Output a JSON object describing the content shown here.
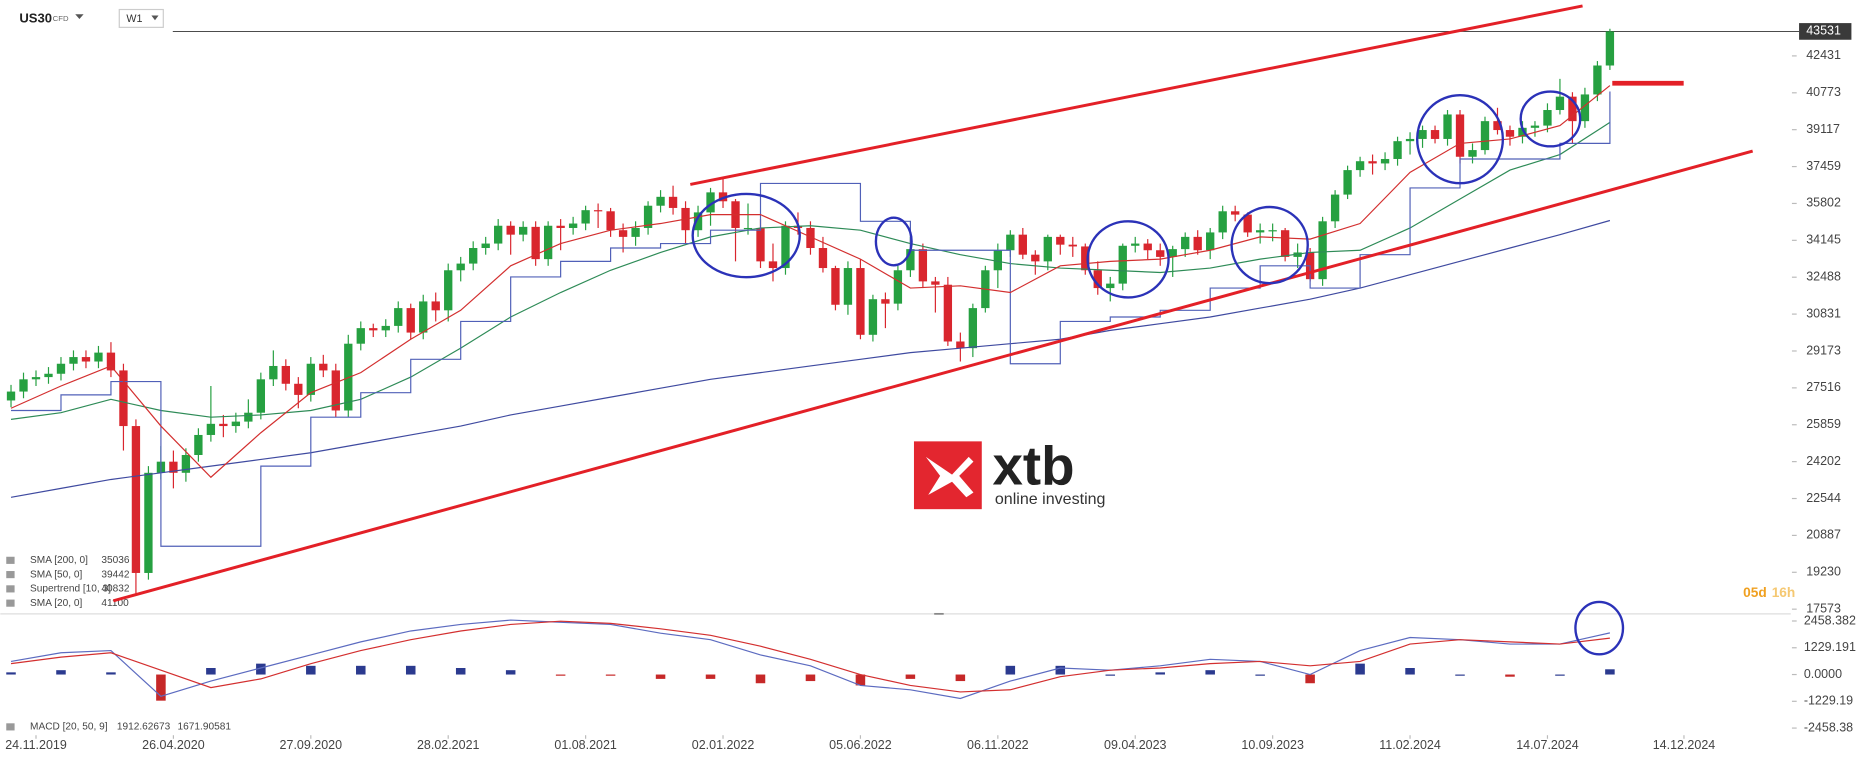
{
  "chart_data": {
    "type": "candlestick",
    "symbol": "US30",
    "instrument_class": "CFD",
    "timeframe": "W1",
    "up_color": "#26a041",
    "down_color": "#d9262e",
    "xlim": [
      "15.10.2019",
      "06.04.2025"
    ],
    "xticks": [
      "24.11.2019",
      "26.04.2020",
      "27.09.2020",
      "28.02.2021",
      "01.08.2021",
      "02.01.2022",
      "05.06.2022",
      "06.11.2022",
      "09.04.2023",
      "10.09.2023",
      "11.02.2024",
      "14.07.2024",
      "14.12.2024"
    ],
    "ylim": [
      17362,
      44943
    ],
    "yticks": [
      42431,
      40773,
      39117,
      37459,
      35802,
      34145,
      32488,
      30831,
      29173,
      27516,
      25859,
      24202,
      22544,
      20887,
      19230,
      17573
    ],
    "last_price": 43531,
    "countdown": {
      "days": "05d",
      "hours": "16h"
    },
    "x": [
      "27.10.2019",
      "10.11.2019",
      "24.11.2019",
      "08.12.2019",
      "22.12.2019",
      "05.01.2020",
      "19.01.2020",
      "02.02.2020",
      "16.02.2020",
      "01.03.2020",
      "15.03.2020",
      "29.03.2020",
      "12.04.2020",
      "26.04.2020",
      "10.05.2020",
      "24.05.2020",
      "07.06.2020",
      "21.06.2020",
      "05.07.2020",
      "19.07.2020",
      "02.08.2020",
      "16.08.2020",
      "30.08.2020",
      "13.09.2020",
      "27.09.2020",
      "11.10.2020",
      "25.10.2020",
      "08.11.2020",
      "22.11.2020",
      "06.12.2020",
      "20.12.2020",
      "03.01.2021",
      "17.01.2021",
      "31.01.2021",
      "14.02.2021",
      "28.02.2021",
      "14.03.2021",
      "28.03.2021",
      "11.04.2021",
      "25.04.2021",
      "09.05.2021",
      "23.05.2021",
      "06.06.2021",
      "20.06.2021",
      "04.07.2021",
      "18.07.2021",
      "01.08.2021",
      "15.08.2021",
      "29.08.2021",
      "12.09.2021",
      "26.09.2021",
      "10.10.2021",
      "24.10.2021",
      "07.11.2021",
      "21.11.2021",
      "05.12.2021",
      "19.12.2021",
      "02.01.2022",
      "16.01.2022",
      "30.01.2022",
      "13.02.2022",
      "27.02.2022",
      "13.03.2022",
      "27.03.2022",
      "10.04.2022",
      "24.04.2022",
      "08.05.2022",
      "22.05.2022",
      "05.06.2022",
      "19.06.2022",
      "03.07.2022",
      "17.07.2022",
      "31.07.2022",
      "14.08.2022",
      "28.08.2022",
      "11.09.2022",
      "25.09.2022",
      "09.10.2022",
      "23.10.2022",
      "06.11.2022",
      "20.11.2022",
      "04.12.2022",
      "18.12.2022",
      "01.01.2023",
      "15.01.2023",
      "29.01.2023",
      "12.02.2023",
      "26.02.2023",
      "12.03.2023",
      "26.03.2023",
      "09.04.2023",
      "23.04.2023",
      "07.05.2023",
      "21.05.2023",
      "04.06.2023",
      "18.06.2023",
      "02.07.2023",
      "16.07.2023",
      "30.07.2023",
      "13.08.2023",
      "27.08.2023",
      "10.09.2023",
      "24.09.2023",
      "08.10.2023",
      "22.10.2023",
      "05.11.2023",
      "19.11.2023",
      "03.12.2023",
      "17.12.2023",
      "31.12.2023",
      "14.01.2024",
      "28.01.2024",
      "11.02.2024",
      "25.02.2024",
      "10.03.2024",
      "24.03.2024",
      "07.04.2024",
      "21.04.2024",
      "05.05.2024",
      "19.05.2024",
      "02.06.2024",
      "16.06.2024",
      "30.06.2024",
      "14.07.2024",
      "28.07.2024",
      "11.08.2024",
      "25.08.2024",
      "08.09.2024",
      "22.09.2024"
    ],
    "ohlc": [
      [
        26950,
        27650,
        26650,
        27350
      ],
      [
        27350,
        28200,
        27050,
        27900
      ],
      [
        27900,
        28300,
        27600,
        28000
      ],
      [
        28000,
        28450,
        27700,
        28150
      ],
      [
        28150,
        28900,
        27850,
        28600
      ],
      [
        28600,
        29200,
        28300,
        28900
      ],
      [
        28900,
        29200,
        28400,
        28700
      ],
      [
        28700,
        29400,
        28400,
        29100
      ],
      [
        29100,
        29570,
        28000,
        28300
      ],
      [
        28300,
        28600,
        24700,
        25800
      ],
      [
        25800,
        26100,
        18200,
        19200
      ],
      [
        19200,
        24000,
        18900,
        23700
      ],
      [
        23700,
        24900,
        23400,
        24200
      ],
      [
        24200,
        24700,
        23000,
        23700
      ],
      [
        23700,
        24800,
        23300,
        24500
      ],
      [
        24500,
        25700,
        24200,
        25400
      ],
      [
        25400,
        27600,
        25100,
        25900
      ],
      [
        25900,
        26300,
        25300,
        25800
      ],
      [
        25800,
        26400,
        25500,
        26000
      ],
      [
        26000,
        27000,
        25700,
        26400
      ],
      [
        26400,
        28200,
        26100,
        27900
      ],
      [
        27900,
        29200,
        27600,
        28500
      ],
      [
        28500,
        28800,
        27400,
        27700
      ],
      [
        27700,
        28000,
        26600,
        27200
      ],
      [
        27200,
        28900,
        26900,
        28600
      ],
      [
        28600,
        29000,
        28000,
        28300
      ],
      [
        28300,
        28600,
        26200,
        26500
      ],
      [
        26500,
        29900,
        26200,
        29500
      ],
      [
        29500,
        30500,
        29200,
        30200
      ],
      [
        30200,
        30400,
        29800,
        30100
      ],
      [
        30100,
        30600,
        29800,
        30300
      ],
      [
        30300,
        31400,
        30000,
        31100
      ],
      [
        31100,
        31300,
        29700,
        30000
      ],
      [
        30000,
        31700,
        29700,
        31400
      ],
      [
        31400,
        31800,
        30500,
        31000
      ],
      [
        31000,
        33100,
        30500,
        32800
      ],
      [
        32800,
        33400,
        32300,
        33100
      ],
      [
        33100,
        34100,
        32800,
        33800
      ],
      [
        33800,
        34300,
        33500,
        34000
      ],
      [
        34000,
        35100,
        33700,
        34800
      ],
      [
        34800,
        35000,
        33500,
        34400
      ],
      [
        34400,
        35000,
        34100,
        34750
      ],
      [
        34750,
        35000,
        33000,
        33300
      ],
      [
        33300,
        35000,
        33000,
        34800
      ],
      [
        34800,
        35100,
        33700,
        34700
      ],
      [
        34700,
        35200,
        34400,
        34900
      ],
      [
        34900,
        35700,
        34600,
        35500
      ],
      [
        35500,
        35800,
        34700,
        35450
      ],
      [
        35450,
        35600,
        34300,
        34600
      ],
      [
        34600,
        34900,
        33600,
        34300
      ],
      [
        34300,
        35000,
        33900,
        34700
      ],
      [
        34700,
        35900,
        34400,
        35700
      ],
      [
        35700,
        36400,
        35400,
        36100
      ],
      [
        36100,
        36600,
        35300,
        35600
      ],
      [
        35600,
        35900,
        34000,
        34600
      ],
      [
        34600,
        35700,
        34300,
        35400
      ],
      [
        35400,
        36500,
        34800,
        36300
      ],
      [
        36300,
        36950,
        35600,
        35900
      ],
      [
        35900,
        36000,
        33200,
        34700
      ],
      [
        34700,
        35800,
        34400,
        34700
      ],
      [
        34700,
        35100,
        32900,
        33200
      ],
      [
        33200,
        34000,
        32300,
        32900
      ],
      [
        32900,
        35000,
        32600,
        34800
      ],
      [
        34800,
        35400,
        34400,
        34700
      ],
      [
        34700,
        35000,
        33500,
        33800
      ],
      [
        33800,
        34300,
        32700,
        32900
      ],
      [
        32900,
        33000,
        31000,
        31250
      ],
      [
        31250,
        33200,
        30800,
        32900
      ],
      [
        32900,
        33300,
        29700,
        29900
      ],
      [
        29900,
        31700,
        29600,
        31500
      ],
      [
        31500,
        31800,
        30200,
        31300
      ],
      [
        31300,
        33000,
        31000,
        32800
      ],
      [
        32800,
        34300,
        32500,
        33750
      ],
      [
        33750,
        34000,
        32000,
        32300
      ],
      [
        32300,
        32500,
        30900,
        32150
      ],
      [
        32150,
        32500,
        29400,
        29600
      ],
      [
        29600,
        30000,
        28700,
        29300
      ],
      [
        29300,
        31300,
        28900,
        31100
      ],
      [
        31100,
        33000,
        30900,
        32800
      ],
      [
        32800,
        34000,
        32000,
        33700
      ],
      [
        33700,
        34600,
        33400,
        34400
      ],
      [
        34400,
        34700,
        33300,
        33500
      ],
      [
        33500,
        33700,
        32600,
        33200
      ],
      [
        33200,
        34400,
        32800,
        34300
      ],
      [
        34300,
        34400,
        33500,
        33950
      ],
      [
        33950,
        34300,
        33400,
        33870
      ],
      [
        33870,
        34000,
        32600,
        32800
      ],
      [
        32800,
        33200,
        31700,
        32000
      ],
      [
        32000,
        32500,
        31400,
        32200
      ],
      [
        32200,
        34000,
        31900,
        33900
      ],
      [
        33900,
        34300,
        33600,
        34000
      ],
      [
        34000,
        34200,
        33300,
        33700
      ],
      [
        33700,
        34000,
        33000,
        33400
      ],
      [
        33400,
        33900,
        32500,
        33750
      ],
      [
        33750,
        34500,
        33400,
        34300
      ],
      [
        34300,
        34600,
        33500,
        33700
      ],
      [
        33700,
        34700,
        33300,
        34500
      ],
      [
        34500,
        35700,
        34200,
        35450
      ],
      [
        35450,
        35700,
        35000,
        35300
      ],
      [
        35300,
        35400,
        34300,
        34500
      ],
      [
        34500,
        34900,
        34000,
        34600
      ],
      [
        34600,
        34900,
        34100,
        34600
      ],
      [
        34600,
        34700,
        33200,
        33400
      ],
      [
        33400,
        34000,
        32900,
        33600
      ],
      [
        33600,
        33800,
        32300,
        32400
      ],
      [
        32400,
        35200,
        32100,
        35000
      ],
      [
        35000,
        36400,
        34700,
        36200
      ],
      [
        36200,
        37500,
        36000,
        37300
      ],
      [
        37300,
        37900,
        37000,
        37700
      ],
      [
        37700,
        38000,
        37100,
        37600
      ],
      [
        37600,
        38100,
        37300,
        37800
      ],
      [
        37800,
        38800,
        37500,
        38600
      ],
      [
        38600,
        39000,
        38000,
        38700
      ],
      [
        38700,
        39300,
        38300,
        39100
      ],
      [
        39100,
        39300,
        38500,
        38700
      ],
      [
        38700,
        40000,
        38400,
        39800
      ],
      [
        39800,
        40000,
        37600,
        37900
      ],
      [
        37900,
        38500,
        37600,
        38200
      ],
      [
        38200,
        39700,
        38000,
        39500
      ],
      [
        39500,
        40100,
        38900,
        39100
      ],
      [
        39100,
        39300,
        38400,
        38800
      ],
      [
        38800,
        39500,
        38500,
        39200
      ],
      [
        39200,
        39500,
        38800,
        39300
      ],
      [
        39300,
        40300,
        39000,
        40000
      ],
      [
        40000,
        41400,
        39800,
        40600
      ],
      [
        40600,
        40800,
        38500,
        39500
      ],
      [
        39500,
        41000,
        39200,
        40700
      ],
      [
        40700,
        42200,
        40400,
        42000
      ],
      [
        42000,
        43650,
        41800,
        43531
      ]
    ],
    "indicator_x": [
      "27.10.2019",
      "22.12.2019",
      "16.02.2020",
      "12.04.2020",
      "07.06.2020",
      "02.08.2020",
      "27.09.2020",
      "22.11.2020",
      "17.01.2021",
      "14.03.2021",
      "09.05.2021",
      "04.07.2021",
      "29.08.2021",
      "24.10.2021",
      "19.12.2021",
      "13.02.2022",
      "10.04.2022",
      "05.06.2022",
      "31.07.2022",
      "25.09.2022",
      "20.11.2022",
      "15.01.2023",
      "12.03.2023",
      "07.05.2023",
      "02.07.2023",
      "27.08.2023",
      "22.10.2023",
      "17.12.2023",
      "11.02.2024",
      "07.04.2024",
      "02.06.2024",
      "28.07.2024",
      "22.09.2024"
    ],
    "indicators": [
      {
        "name": "SMA [200, 0]",
        "color": "#3f4aa0",
        "values": [
          22600,
          23000,
          23400,
          23700,
          24000,
          24300,
          24600,
          25000,
          25400,
          25800,
          26300,
          26700,
          27100,
          27500,
          27900,
          28200,
          28500,
          28800,
          29100,
          29300,
          29500,
          29700,
          30100,
          30400,
          30700,
          31100,
          31500,
          32000,
          32600,
          33200,
          33800,
          34400,
          35036
        ]
      },
      {
        "name": "SMA [50, 0]",
        "color": "#2e8b57",
        "values": [
          26100,
          26400,
          27000,
          26500,
          26200,
          26300,
          26500,
          27000,
          28000,
          29300,
          30700,
          31800,
          32800,
          33600,
          34300,
          34700,
          34800,
          34600,
          34000,
          33500,
          33100,
          32900,
          32800,
          32700,
          32900,
          33300,
          33600,
          33700,
          34700,
          36000,
          37300,
          38000,
          39442
        ]
      },
      {
        "name": "Supertrend [10, 3]",
        "color": "#5060b8",
        "step": true,
        "values": [
          26500,
          27200,
          27800,
          20400,
          20400,
          24000,
          26200,
          27300,
          28800,
          30500,
          32500,
          33200,
          33800,
          34000,
          34600,
          36700,
          36700,
          35000,
          33700,
          33700,
          28600,
          30500,
          30700,
          31000,
          32000,
          33000,
          32000,
          33500,
          36500,
          37800,
          37800,
          38500,
          40832
        ]
      },
      {
        "name": "SMA [20, 0]",
        "color": "#d32f2f",
        "values": [
          26600,
          27600,
          28500,
          25800,
          23500,
          25500,
          27300,
          28200,
          29700,
          31000,
          33000,
          34000,
          34600,
          34900,
          35300,
          35300,
          34300,
          33300,
          32000,
          32100,
          31800,
          33000,
          33200,
          33300,
          33700,
          34300,
          34200,
          34900,
          37200,
          38500,
          38700,
          39300,
          41100
        ]
      }
    ],
    "macd": {
      "name": "MACD [20, 50, 9]",
      "macd_color": "#5c6bc0",
      "signal_color": "#d32f2f",
      "positive_color": "#2b3a8f",
      "negative_color": "#c62828",
      "ylim": [
        -2786,
        2786
      ],
      "yticks": [
        2458.382,
        1229.191,
        {
          "value": 0,
          "label": "0.0000"
        },
        -1229.19,
        -2458.38
      ],
      "macd": [
        600,
        1000,
        1100,
        -1000,
        -300,
        300,
        900,
        1500,
        2000,
        2300,
        2500,
        2400,
        2300,
        1900,
        1600,
        900,
        400,
        -500,
        -700,
        -1100,
        -300,
        300,
        200,
        400,
        700,
        600,
        0,
        1100,
        1700,
        1600,
        1400,
        1400,
        1912.62673
      ],
      "signal": [
        500,
        800,
        1000,
        200,
        -600,
        -200,
        500,
        1100,
        1600,
        2000,
        2300,
        2450,
        2350,
        2100,
        1800,
        1300,
        700,
        0,
        -500,
        -800,
        -700,
        -100,
        200,
        300,
        500,
        600,
        400,
        600,
        1400,
        1600,
        1500,
        1400,
        1671.90581
      ],
      "histogram": [
        100,
        200,
        100,
        -1200,
        300,
        500,
        400,
        400,
        400,
        300,
        200,
        -50,
        -50,
        -200,
        -200,
        -400,
        -300,
        -500,
        -200,
        -300,
        400,
        400,
        0,
        100,
        200,
        0,
        -400,
        500,
        300,
        0,
        -100,
        0,
        240.7
      ]
    },
    "watermark": {
      "brand": "xtb",
      "tagline": "online investing"
    }
  }
}
